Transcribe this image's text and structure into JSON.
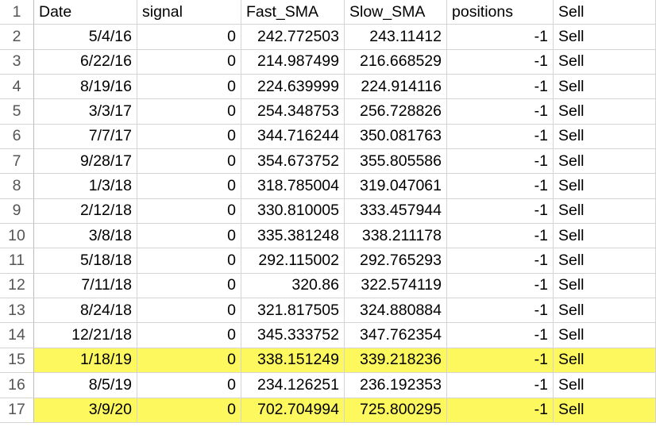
{
  "sheet": {
    "columns": [
      "Date",
      "signal",
      "Fast_SMA",
      "Slow_SMA",
      "positions",
      "Sell"
    ],
    "highlight_color": "#fdf85e",
    "header_row_number": "1",
    "rows": [
      {
        "num": "2",
        "date": "5/4/16",
        "signal": "0",
        "fast": "242.772503",
        "slow": "243.11412",
        "positions": "-1",
        "action": "Sell",
        "highlight": false
      },
      {
        "num": "3",
        "date": "6/22/16",
        "signal": "0",
        "fast": "214.987499",
        "slow": "216.668529",
        "positions": "-1",
        "action": "Sell",
        "highlight": false
      },
      {
        "num": "4",
        "date": "8/19/16",
        "signal": "0",
        "fast": "224.639999",
        "slow": "224.914116",
        "positions": "-1",
        "action": "Sell",
        "highlight": false
      },
      {
        "num": "5",
        "date": "3/3/17",
        "signal": "0",
        "fast": "254.348753",
        "slow": "256.728826",
        "positions": "-1",
        "action": "Sell",
        "highlight": false
      },
      {
        "num": "6",
        "date": "7/7/17",
        "signal": "0",
        "fast": "344.716244",
        "slow": "350.081763",
        "positions": "-1",
        "action": "Sell",
        "highlight": false
      },
      {
        "num": "7",
        "date": "9/28/17",
        "signal": "0",
        "fast": "354.673752",
        "slow": "355.805586",
        "positions": "-1",
        "action": "Sell",
        "highlight": false
      },
      {
        "num": "8",
        "date": "1/3/18",
        "signal": "0",
        "fast": "318.785004",
        "slow": "319.047061",
        "positions": "-1",
        "action": "Sell",
        "highlight": false
      },
      {
        "num": "9",
        "date": "2/12/18",
        "signal": "0",
        "fast": "330.810005",
        "slow": "333.457944",
        "positions": "-1",
        "action": "Sell",
        "highlight": false
      },
      {
        "num": "10",
        "date": "3/8/18",
        "signal": "0",
        "fast": "335.381248",
        "slow": "338.211178",
        "positions": "-1",
        "action": "Sell",
        "highlight": false
      },
      {
        "num": "11",
        "date": "5/18/18",
        "signal": "0",
        "fast": "292.115002",
        "slow": "292.765293",
        "positions": "-1",
        "action": "Sell",
        "highlight": false
      },
      {
        "num": "12",
        "date": "7/11/18",
        "signal": "0",
        "fast": "320.86",
        "slow": "322.574119",
        "positions": "-1",
        "action": "Sell",
        "highlight": false
      },
      {
        "num": "13",
        "date": "8/24/18",
        "signal": "0",
        "fast": "321.817505",
        "slow": "324.880884",
        "positions": "-1",
        "action": "Sell",
        "highlight": false
      },
      {
        "num": "14",
        "date": "12/21/18",
        "signal": "0",
        "fast": "345.333752",
        "slow": "347.762354",
        "positions": "-1",
        "action": "Sell",
        "highlight": false
      },
      {
        "num": "15",
        "date": "1/18/19",
        "signal": "0",
        "fast": "338.151249",
        "slow": "339.218236",
        "positions": "-1",
        "action": "Sell",
        "highlight": true
      },
      {
        "num": "16",
        "date": "8/5/19",
        "signal": "0",
        "fast": "234.126251",
        "slow": "236.192353",
        "positions": "-1",
        "action": "Sell",
        "highlight": false
      },
      {
        "num": "17",
        "date": "3/9/20",
        "signal": "0",
        "fast": "702.704994",
        "slow": "725.800295",
        "positions": "-1",
        "action": "Sell",
        "highlight": true
      }
    ]
  }
}
